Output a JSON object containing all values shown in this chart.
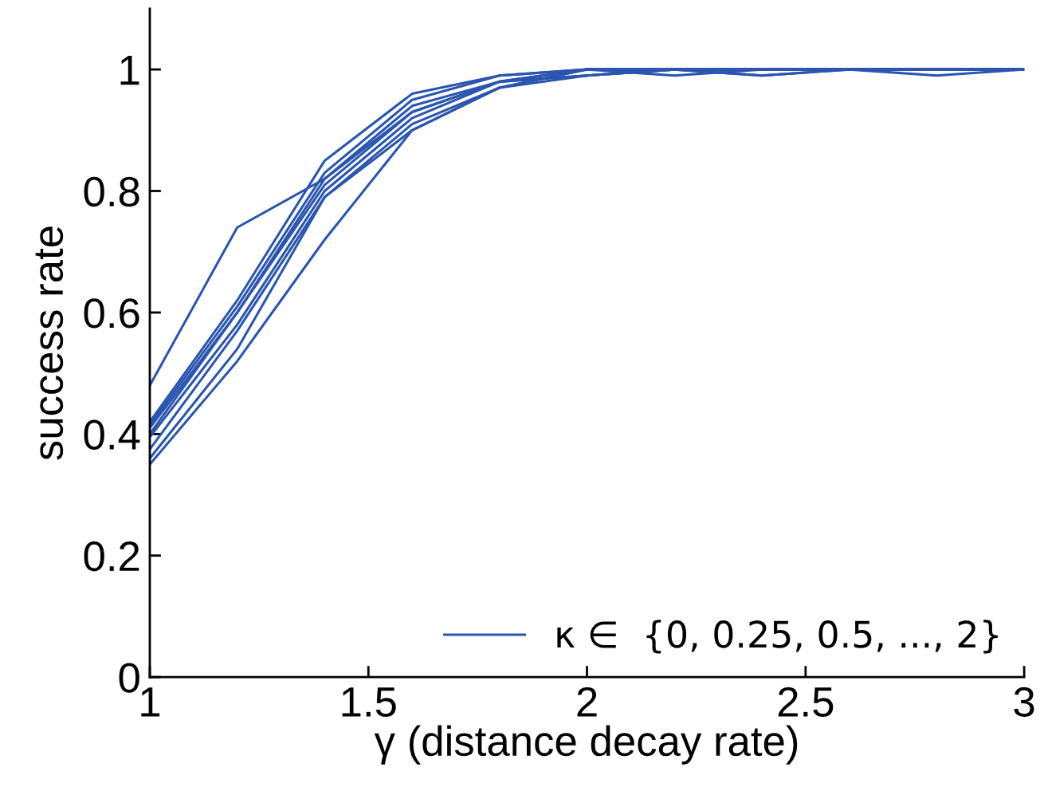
{
  "chart_data": {
    "type": "line",
    "xlabel": "γ (distance decay rate)",
    "ylabel": "success rate",
    "x": [
      1,
      1.2,
      1.4,
      1.6,
      1.8,
      2,
      2.2,
      2.4,
      2.6,
      2.8,
      3
    ],
    "xlim": [
      1,
      3
    ],
    "xticks": [
      1,
      1.5,
      2,
      2.5,
      3
    ],
    "ylim": [
      0,
      1.1
    ],
    "yticks": [
      0,
      0.2,
      0.4,
      0.6,
      0.8,
      1
    ],
    "grid": false,
    "legend": "bottom right",
    "marker": "none",
    "line_style": "solid",
    "series": [
      {
        "name": "κ ∈  {0, 0.25, 0.5, ..., 2}",
        "color": "#2a55b0",
        "values": [
          0.48,
          0.74,
          0.82,
          0.93,
          0.98,
          0.99,
          1,
          1,
          1,
          1,
          1
        ]
      },
      {
        "color": "#2a55b0",
        "values": [
          0.42,
          0.62,
          0.85,
          0.96,
          0.99,
          1,
          1,
          1,
          1,
          1,
          1
        ]
      },
      {
        "color": "#2a55b0",
        "values": [
          0.415,
          0.61,
          0.83,
          0.95,
          0.99,
          1,
          1,
          0.99,
          1,
          1,
          1
        ]
      },
      {
        "color": "#2a55b0",
        "values": [
          0.41,
          0.6,
          0.82,
          0.94,
          0.98,
          1,
          0.99,
          1,
          1,
          1,
          1
        ]
      },
      {
        "color": "#2a55b0",
        "values": [
          0.4,
          0.6,
          0.81,
          0.93,
          0.98,
          1,
          1,
          1,
          1,
          0.99,
          1
        ]
      },
      {
        "color": "#2a55b0",
        "values": [
          0.395,
          0.58,
          0.8,
          0.92,
          0.98,
          0.99,
          1,
          1,
          1,
          1,
          1
        ]
      },
      {
        "color": "#2a55b0",
        "values": [
          0.375,
          0.57,
          0.79,
          0.91,
          0.97,
          1,
          1,
          1,
          1,
          1,
          1
        ]
      },
      {
        "color": "#2a55b0",
        "values": [
          0.36,
          0.54,
          0.79,
          0.9,
          0.97,
          1,
          1,
          0.99,
          1,
          1,
          1
        ]
      },
      {
        "color": "#2a55b0",
        "values": [
          0.35,
          0.52,
          0.72,
          0.9,
          0.97,
          0.99,
          1,
          1,
          1,
          1,
          1
        ]
      }
    ]
  }
}
